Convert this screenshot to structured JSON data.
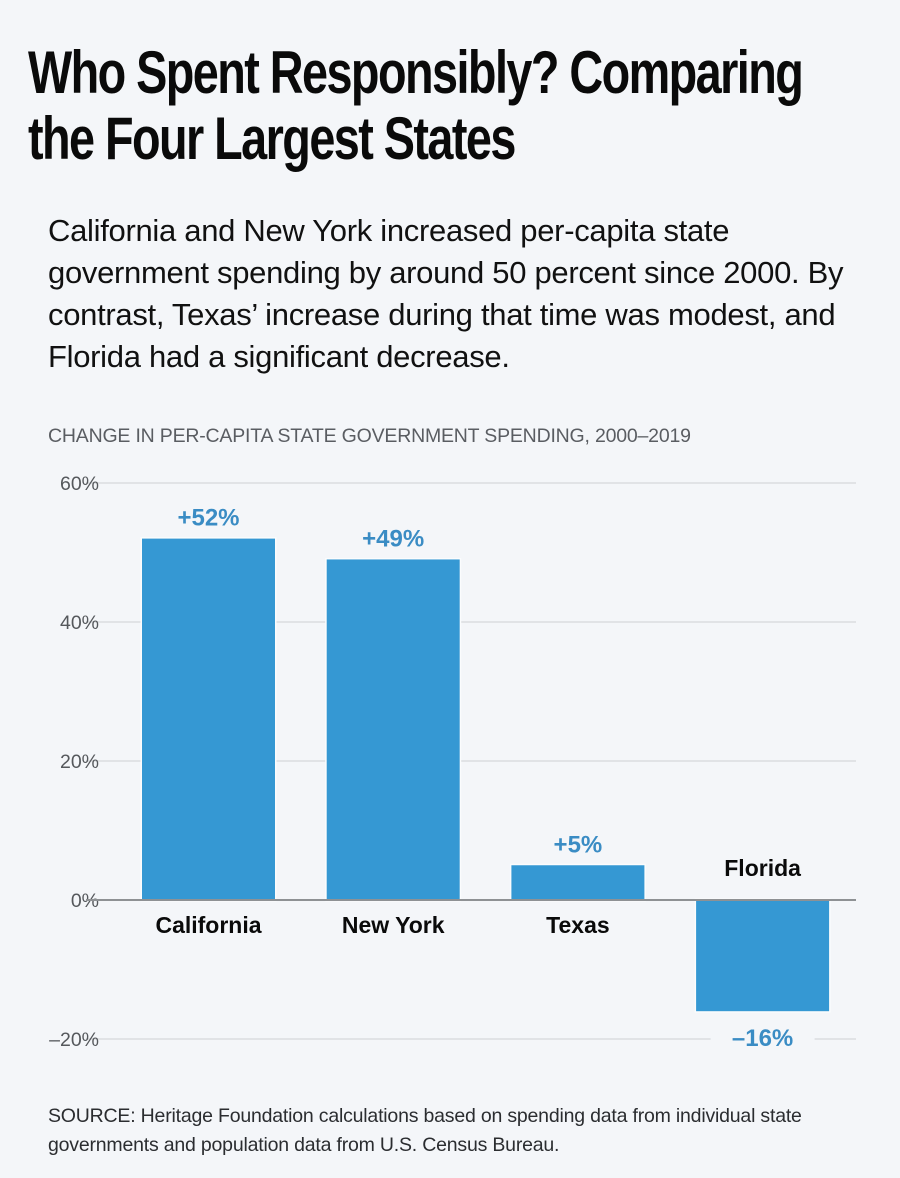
{
  "title": "Who Spent Responsibly? Comparing the Four Largest States",
  "subtitle": "California and New York increased per-capita state government spending by around 50 percent since 2000. By contrast, Texas’ increase during that time was modest, and Florida had a significant decrease.",
  "chart_heading": "CHANGE IN PER-CAPITA STATE GOVERNMENT SPENDING, 2000–2019",
  "source": "SOURCE: Heritage Foundation calculations based on spending data from individual state governments and population data from U.S. Census Bureau.",
  "colors": {
    "bar": "#3598d3",
    "data_label": "#3a8cc4",
    "category_label": "#0a0a0a",
    "tick_label": "#55585c",
    "gridline": "#e1e3e6",
    "zero_line": "#8e9194",
    "background": "#f4f6f9"
  },
  "chart_data": {
    "type": "bar",
    "title": "CHANGE IN PER-CAPITA STATE GOVERNMENT SPENDING, 2000–2019",
    "xlabel": "",
    "ylabel": "",
    "categories": [
      "California",
      "New York",
      "Texas",
      "Florida"
    ],
    "values": [
      52,
      49,
      5,
      -16
    ],
    "data_labels": [
      "+52%",
      "+49%",
      "+5%",
      "–16%"
    ],
    "ylim": [
      -20,
      60
    ],
    "yticks": [
      60,
      40,
      20,
      0,
      -20
    ],
    "ytick_labels": [
      "60%",
      "40%",
      "20%",
      "0%",
      "–20%"
    ],
    "grid": true,
    "legend": "none"
  }
}
